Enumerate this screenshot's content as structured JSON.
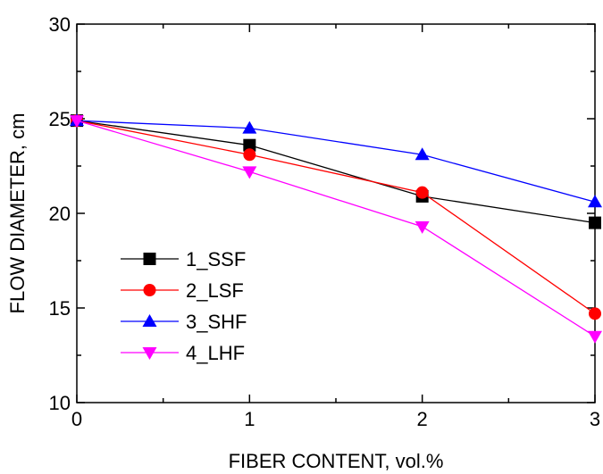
{
  "chart_data": {
    "type": "line",
    "xlabel": "FIBER CONTENT, vol.%",
    "ylabel": "FLOW DIAMETER, cm",
    "xlim": [
      0,
      3
    ],
    "ylim": [
      10,
      30
    ],
    "x_ticks": [
      0,
      1,
      2,
      3
    ],
    "y_ticks": [
      10,
      15,
      20,
      25,
      30
    ],
    "x": [
      0,
      1,
      2,
      3
    ],
    "grid": false,
    "legend_position": "lower-left",
    "series": [
      {
        "name": "1_SSF",
        "values": [
          24.9,
          23.6,
          20.9,
          19.5
        ],
        "color": "#000000",
        "marker": "square"
      },
      {
        "name": "2_LSF",
        "values": [
          24.9,
          23.1,
          21.1,
          14.7
        ],
        "color": "#ff0000",
        "marker": "circle"
      },
      {
        "name": "3_SHF",
        "values": [
          24.9,
          24.5,
          23.1,
          20.6
        ],
        "color": "#0000ff",
        "marker": "triangle-up"
      },
      {
        "name": "4_LHF",
        "values": [
          24.9,
          22.2,
          19.3,
          13.5
        ],
        "color": "#ff00ff",
        "marker": "triangle-down"
      }
    ]
  }
}
